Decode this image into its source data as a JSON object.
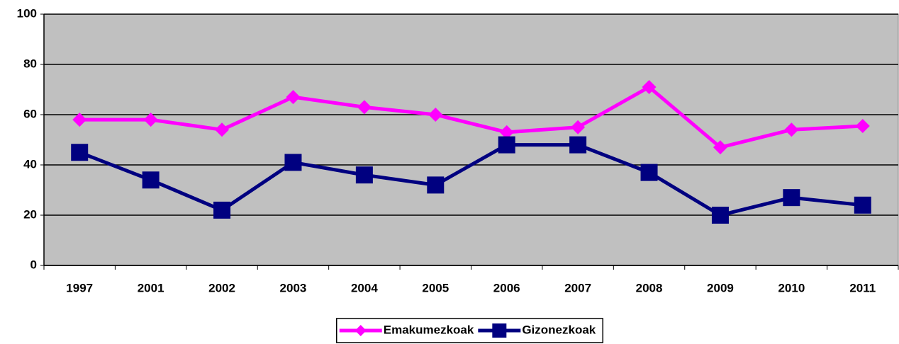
{
  "chart_data": {
    "type": "line",
    "categories": [
      "1997",
      "2001",
      "2002",
      "2003",
      "2004",
      "2005",
      "2006",
      "2007",
      "2008",
      "2009",
      "2010",
      "2011"
    ],
    "series": [
      {
        "name": "Emakumezkoak",
        "color": "#ff00ff",
        "marker": "diamond",
        "values": [
          58,
          58,
          54,
          67,
          63,
          60,
          53,
          55,
          71,
          47,
          54,
          55.5
        ]
      },
      {
        "name": "Gizonezkoak",
        "color": "#000080",
        "marker": "square",
        "values": [
          45,
          34,
          22,
          41,
          36,
          32,
          48,
          48,
          37,
          20,
          27,
          24
        ]
      }
    ],
    "ylim": [
      0,
      100
    ],
    "yticks": [
      0,
      20,
      40,
      60,
      80,
      100
    ],
    "grid": true,
    "legend": "bottom"
  }
}
